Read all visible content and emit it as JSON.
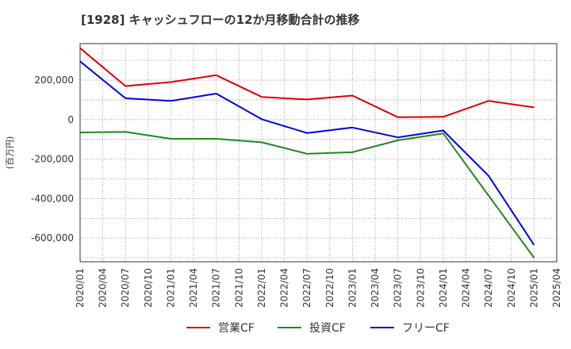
{
  "chart_data": {
    "type": "line",
    "title": "[1928]  キャッシュフローの12か月移動合計の推移",
    "ylabel": "(百万円)",
    "xlabel": "",
    "ylim": [
      -720000,
      385000
    ],
    "yticks": [
      200000,
      0,
      -200000,
      -400000,
      -600000
    ],
    "ytick_labels": [
      "200,000",
      "0",
      "-200,000",
      "-400,000",
      "-600,000"
    ],
    "categories": [
      "2020/01",
      "2020/04",
      "2020/07",
      "2020/10",
      "2021/01",
      "2021/04",
      "2021/07",
      "2021/10",
      "2022/01",
      "2022/04",
      "2022/07",
      "2022/10",
      "2023/01",
      "2023/04",
      "2023/07",
      "2023/10",
      "2024/01",
      "2024/04",
      "2024/07",
      "2024/10",
      "2025/01",
      "2025/04"
    ],
    "series": [
      {
        "name": "営業CF",
        "color": "#dd0000",
        "points": [
          [
            0,
            362000
          ],
          [
            2,
            170000
          ],
          [
            4,
            190000
          ],
          [
            6,
            225000
          ],
          [
            8,
            115000
          ],
          [
            10,
            102000
          ],
          [
            12,
            122000
          ],
          [
            14,
            12000
          ],
          [
            16,
            14000
          ],
          [
            18,
            95000
          ],
          [
            20,
            62000
          ]
        ]
      },
      {
        "name": "投資CF",
        "color": "#228822",
        "points": [
          [
            0,
            -65000
          ],
          [
            2,
            -62000
          ],
          [
            4,
            -97000
          ],
          [
            6,
            -97000
          ],
          [
            8,
            -115000
          ],
          [
            10,
            -173000
          ],
          [
            12,
            -165000
          ],
          [
            14,
            -105000
          ],
          [
            16,
            -70000
          ],
          [
            18,
            -385000
          ],
          [
            20,
            -700000
          ]
        ]
      },
      {
        "name": "フリーCF",
        "color": "#0000dd",
        "points": [
          [
            0,
            295000
          ],
          [
            2,
            108000
          ],
          [
            4,
            95000
          ],
          [
            6,
            132000
          ],
          [
            8,
            2000
          ],
          [
            10,
            -68000
          ],
          [
            12,
            -40000
          ],
          [
            14,
            -90000
          ],
          [
            16,
            -55000
          ],
          [
            18,
            -285000
          ],
          [
            20,
            -635000
          ]
        ]
      }
    ],
    "grid": true,
    "legend": "bottom"
  }
}
